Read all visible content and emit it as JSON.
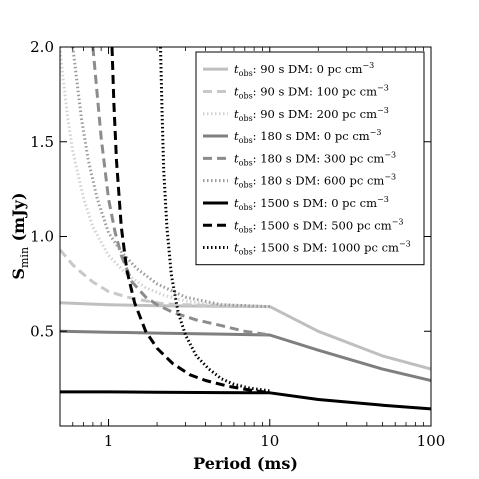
{
  "chart_data": {
    "type": "line",
    "xscale": "log",
    "xlim": [
      0.5,
      100
    ],
    "ylim": [
      0,
      2.0
    ],
    "xlabel": "Period (ms)",
    "ylabel_main": "S",
    "ylabel_sub": "min",
    "ylabel_unit": " (mJy)",
    "xticks": [
      {
        "value": 1,
        "label": "1"
      },
      {
        "value": 10,
        "label": "10"
      },
      {
        "value": 100,
        "label": "100"
      }
    ],
    "yticks": [
      {
        "value": 0.5,
        "label": "0.5"
      },
      {
        "value": 1.0,
        "label": "1.0"
      },
      {
        "value": 1.5,
        "label": "1.5"
      },
      {
        "value": 2.0,
        "label": "2.0"
      }
    ],
    "legend_position": "upper right",
    "series": [
      {
        "name_head": "t",
        "name_sub": "obs",
        "name_rest": ": 90 s DM: 0 pc cm",
        "name_sup": "−3",
        "color": "#bfbfbf",
        "style": "solid",
        "x": [
          0.5,
          1,
          2,
          5,
          10,
          20,
          50,
          100
        ],
        "y": [
          0.65,
          0.64,
          0.635,
          0.632,
          0.63,
          0.5,
          0.37,
          0.3
        ]
      },
      {
        "name_head": "t",
        "name_sub": "obs",
        "name_rest": ": 90 s DM: 100 pc cm",
        "name_sup": "−3",
        "color": "#c8c8c8",
        "style": "dashed",
        "x": [
          0.5,
          0.6,
          0.7,
          0.8,
          1.0,
          1.3,
          1.7,
          2.2,
          3,
          5,
          10
        ],
        "y": [
          0.93,
          0.85,
          0.8,
          0.76,
          0.71,
          0.68,
          0.66,
          0.645,
          0.64,
          0.635,
          0.63
        ]
      },
      {
        "name_head": "t",
        "name_sub": "obs",
        "name_rest": ": 90 s DM: 200 pc cm",
        "name_sup": "−3",
        "color": "#d2d2d2",
        "style": "dotted",
        "x": [
          0.5,
          0.52,
          0.56,
          0.6,
          0.7,
          0.8,
          1.0,
          1.3,
          1.7,
          2.2,
          3,
          4,
          5,
          7,
          10
        ],
        "y": [
          2.0,
          1.85,
          1.62,
          1.45,
          1.2,
          1.05,
          0.9,
          0.8,
          0.73,
          0.69,
          0.66,
          0.645,
          0.64,
          0.635,
          0.63
        ]
      },
      {
        "name_head": "t",
        "name_sub": "obs",
        "name_rest": ": 180 s DM: 0 pc cm",
        "name_sup": "−3",
        "color": "#7f7f7f",
        "style": "solid",
        "x": [
          0.5,
          1,
          2,
          5,
          10,
          20,
          50,
          100
        ],
        "y": [
          0.5,
          0.495,
          0.49,
          0.485,
          0.48,
          0.4,
          0.3,
          0.24
        ]
      },
      {
        "name_head": "t",
        "name_sub": "obs",
        "name_rest": ": 180 s DM: 300 pc cm",
        "name_sup": "−3",
        "color": "#8c8c8c",
        "style": "dashed",
        "x": [
          0.8,
          0.85,
          0.9,
          1.0,
          1.1,
          1.2,
          1.4,
          1.7,
          2.0,
          2.5,
          3.5,
          5,
          7,
          10
        ],
        "y": [
          2.0,
          1.75,
          1.52,
          1.2,
          1.02,
          0.9,
          0.76,
          0.68,
          0.64,
          0.6,
          0.56,
          0.53,
          0.5,
          0.48
        ]
      },
      {
        "name_head": "t",
        "name_sub": "obs",
        "name_rest": ": 180 s DM: 600 pc cm",
        "name_sup": "−3",
        "color": "#9a9a9a",
        "style": "dotted",
        "x": [
          0.6,
          0.63,
          0.68,
          0.75,
          0.85,
          1.0,
          1.2,
          1.5,
          2.0,
          3.0,
          5.0,
          10
        ],
        "y": [
          2.0,
          1.85,
          1.62,
          1.4,
          1.2,
          1.02,
          0.92,
          0.83,
          0.75,
          0.68,
          0.64,
          0.63
        ]
      },
      {
        "name_head": "t",
        "name_sub": "obs",
        "name_rest": ": 1500 s DM: 0 pc cm",
        "name_sup": "−3",
        "color": "#000000",
        "style": "solid",
        "x": [
          0.5,
          1,
          2,
          5,
          10,
          20,
          50,
          100
        ],
        "y": [
          0.18,
          0.18,
          0.178,
          0.176,
          0.175,
          0.14,
          0.11,
          0.09
        ]
      },
      {
        "name_head": "t",
        "name_sub": "obs",
        "name_rest": ": 1500 s DM: 500 pc cm",
        "name_sup": "−3",
        "color": "#000000",
        "style": "dashed",
        "x": [
          1.05,
          1.08,
          1.12,
          1.2,
          1.3,
          1.45,
          1.7,
          2.0,
          2.5,
          3.2,
          4.0,
          5.5,
          7.5,
          10
        ],
        "y": [
          2.0,
          1.7,
          1.4,
          1.05,
          0.82,
          0.65,
          0.5,
          0.41,
          0.33,
          0.27,
          0.24,
          0.21,
          0.19,
          0.175
        ]
      },
      {
        "name_head": "t",
        "name_sub": "obs",
        "name_rest": ": 1500 s DM: 1000 pc cm",
        "name_sup": "−3",
        "color": "#000000",
        "style": "dotted",
        "x": [
          2.1,
          2.15,
          2.2,
          2.3,
          2.45,
          2.7,
          3.0,
          3.5,
          4.2,
          5.0,
          6.0,
          7.5,
          10
        ],
        "y": [
          2.0,
          1.65,
          1.35,
          1.05,
          0.8,
          0.6,
          0.48,
          0.37,
          0.3,
          0.25,
          0.22,
          0.2,
          0.185
        ]
      }
    ]
  }
}
